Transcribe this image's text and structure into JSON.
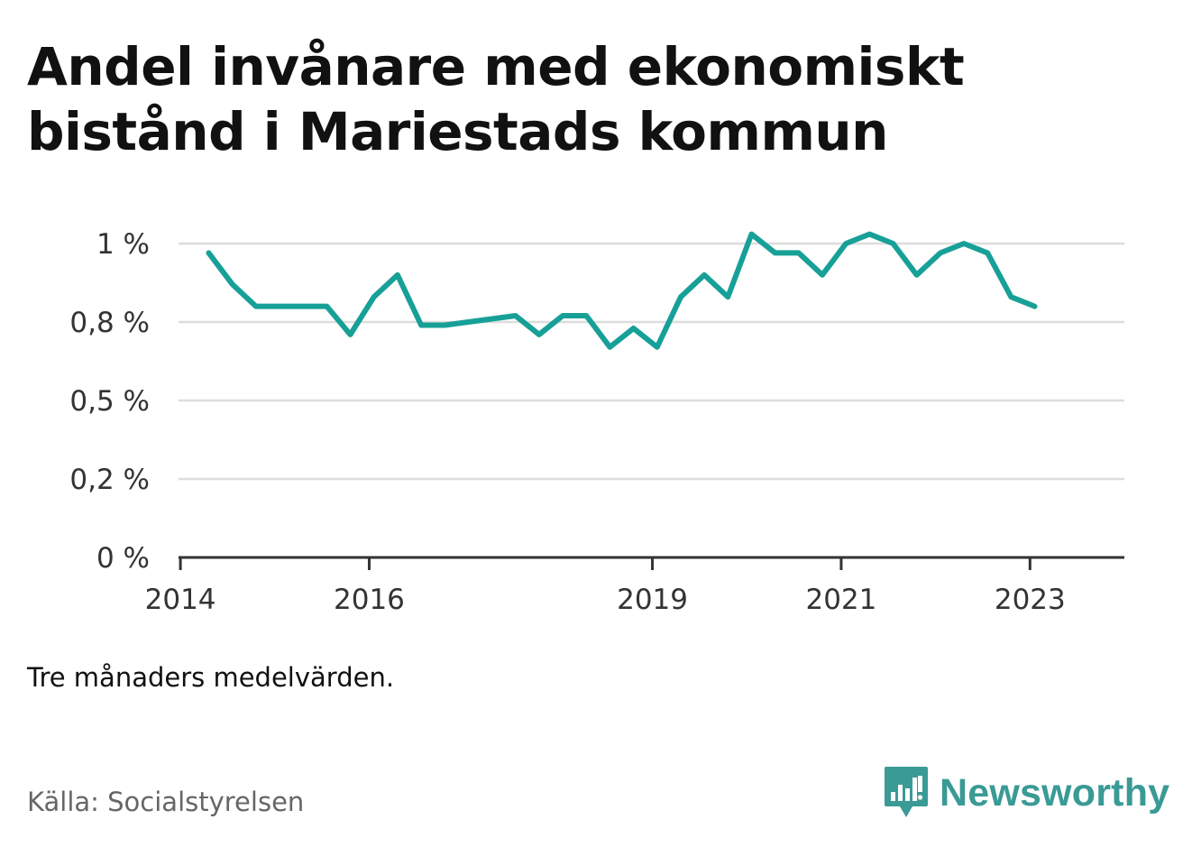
{
  "title": "Andel invånare med ekonomiskt bistånd i Mariestads kommun",
  "note": "Tre månaders medelvärden.",
  "source": "Källa: Socialstyrelsen",
  "brand": {
    "name": "Newsworthy",
    "icon": "newsworthy-bar-chart-icon",
    "color": "#3a9a95"
  },
  "chart_data": {
    "type": "line",
    "ylim": [
      0,
      1.0
    ],
    "xlim": [
      2013.98,
      2024.0
    ],
    "y_ticks": [
      0,
      0.25,
      0.5,
      0.75,
      1.0
    ],
    "y_tick_labels": [
      "0 %",
      "0,2 %",
      "0,5 %",
      "0,8 %",
      "1 %"
    ],
    "x_ticks": [
      2014,
      2016,
      2019,
      2021,
      2023
    ],
    "x_tick_labels": [
      "2014",
      "2016",
      "2019",
      "2021",
      "2023"
    ],
    "grid": true,
    "line_color": "#17a097",
    "series": [
      {
        "x": [
          2014.3,
          2014.55,
          2014.8,
          2015.05,
          2015.3,
          2015.55,
          2015.8,
          2016.05,
          2016.3,
          2016.55,
          2016.8,
          2017.05,
          2017.3,
          2017.55,
          2017.8,
          2018.05,
          2018.3,
          2018.55,
          2018.8,
          2019.05,
          2019.3,
          2019.55,
          2019.8,
          2020.05,
          2020.3,
          2020.55,
          2020.8,
          2021.05,
          2021.3,
          2021.55,
          2021.8,
          2022.05,
          2022.3,
          2022.55,
          2022.8,
          2023.05
        ],
        "values": [
          0.97,
          0.87,
          0.8,
          0.8,
          0.8,
          0.8,
          0.71,
          0.83,
          0.9,
          0.74,
          0.74,
          0.75,
          0.76,
          0.77,
          0.71,
          0.77,
          0.77,
          0.67,
          0.73,
          0.67,
          0.83,
          0.9,
          0.83,
          1.03,
          0.97,
          0.97,
          0.9,
          1.0,
          1.03,
          1.0,
          0.9,
          0.97,
          1.0,
          0.97,
          0.83,
          0.8
        ]
      }
    ]
  }
}
